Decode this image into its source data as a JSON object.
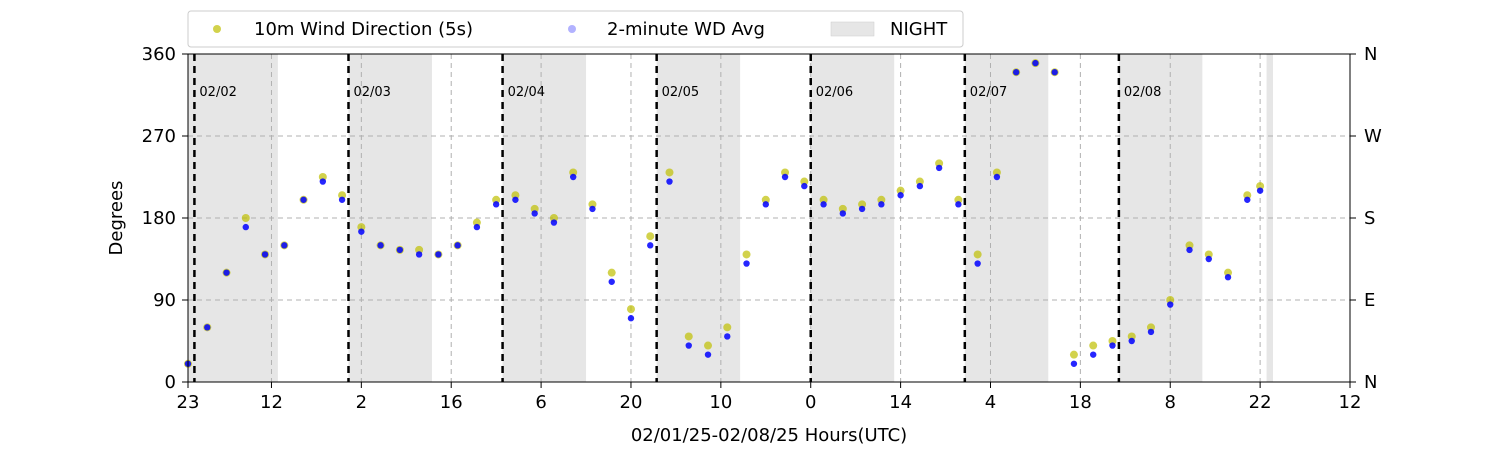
{
  "chart_data": {
    "type": "scatter",
    "xlabel": "02/01/25-02/08/25  Hours(UTC)",
    "ylabel": "Degrees",
    "x_start": "2025-02-01T23:00Z",
    "x_end": "2025-02-09T12:00Z",
    "x_ticks": [
      {
        "time": "2025-02-01T23:00Z",
        "label": "23"
      },
      {
        "time": "2025-02-02T12:00Z",
        "label": "12"
      },
      {
        "time": "2025-02-03T02:00Z",
        "label": "2"
      },
      {
        "time": "2025-02-03T16:00Z",
        "label": "16"
      },
      {
        "time": "2025-02-04T06:00Z",
        "label": "6"
      },
      {
        "time": "2025-02-04T20:00Z",
        "label": "20"
      },
      {
        "time": "2025-02-05T10:00Z",
        "label": "10"
      },
      {
        "time": "2025-02-06T00:00Z",
        "label": "0"
      },
      {
        "time": "2025-02-06T14:00Z",
        "label": "14"
      },
      {
        "time": "2025-02-07T04:00Z",
        "label": "4"
      },
      {
        "time": "2025-02-07T18:00Z",
        "label": "18"
      },
      {
        "time": "2025-02-08T08:00Z",
        "label": "8"
      },
      {
        "time": "2025-02-08T22:00Z",
        "label": "22"
      },
      {
        "time": "2025-02-09T12:00Z",
        "label": "12"
      }
    ],
    "ylim": [
      0,
      360
    ],
    "y_ticks": [
      0,
      90,
      180,
      270,
      360
    ],
    "y2_ticks": [
      {
        "value": 0,
        "label": "N"
      },
      {
        "value": 90,
        "label": "E"
      },
      {
        "value": 180,
        "label": "S"
      },
      {
        "value": 270,
        "label": "W"
      },
      {
        "value": 360,
        "label": "N"
      }
    ],
    "grid": true,
    "legend": {
      "placement": "top-left, above plot",
      "entries": [
        "10m Wind Direction (5s)",
        "2-minute WD Avg",
        "NIGHT"
      ]
    },
    "day_markers": [
      {
        "time": "2025-02-02T00:00Z",
        "label": "02/02"
      },
      {
        "time": "2025-02-03T00:00Z",
        "label": "02/03"
      },
      {
        "time": "2025-02-04T00:00Z",
        "label": "02/04"
      },
      {
        "time": "2025-02-05T00:00Z",
        "label": "02/05"
      },
      {
        "time": "2025-02-06T00:00Z",
        "label": "02/06"
      },
      {
        "time": "2025-02-07T00:00Z",
        "label": "02/07"
      },
      {
        "time": "2025-02-08T00:00Z",
        "label": "02/08"
      }
    ],
    "night": [
      {
        "start": "2025-02-01T23:00Z",
        "end": "2025-02-02T13:00Z"
      },
      {
        "start": "2025-02-03T00:00Z",
        "end": "2025-02-03T13:00Z"
      },
      {
        "start": "2025-02-04T00:00Z",
        "end": "2025-02-04T13:00Z"
      },
      {
        "start": "2025-02-05T00:00Z",
        "end": "2025-02-05T13:00Z"
      },
      {
        "start": "2025-02-06T00:00Z",
        "end": "2025-02-06T13:00Z"
      },
      {
        "start": "2025-02-07T00:00Z",
        "end": "2025-02-07T13:00Z"
      },
      {
        "start": "2025-02-08T00:00Z",
        "end": "2025-02-08T13:00Z"
      },
      {
        "start": "2025-02-08T23:00Z",
        "end": "2025-02-09T00:00Z"
      }
    ],
    "series": [
      {
        "name": "10m Wind Direction (5s)",
        "color": "#bfbf00",
        "x": [
          "2025-02-01T23:00Z",
          "2025-02-02T02:00Z",
          "2025-02-02T05:00Z",
          "2025-02-02T08:00Z",
          "2025-02-02T11:00Z",
          "2025-02-02T14:00Z",
          "2025-02-02T17:00Z",
          "2025-02-02T20:00Z",
          "2025-02-02T23:00Z",
          "2025-02-03T02:00Z",
          "2025-02-03T05:00Z",
          "2025-02-03T08:00Z",
          "2025-02-03T11:00Z",
          "2025-02-03T14:00Z",
          "2025-02-03T17:00Z",
          "2025-02-03T20:00Z",
          "2025-02-03T23:00Z",
          "2025-02-04T02:00Z",
          "2025-02-04T05:00Z",
          "2025-02-04T08:00Z",
          "2025-02-04T11:00Z",
          "2025-02-04T14:00Z",
          "2025-02-04T17:00Z",
          "2025-02-04T20:00Z",
          "2025-02-04T23:00Z",
          "2025-02-05T02:00Z",
          "2025-02-05T05:00Z",
          "2025-02-05T08:00Z",
          "2025-02-05T11:00Z",
          "2025-02-05T14:00Z",
          "2025-02-05T17:00Z",
          "2025-02-05T20:00Z",
          "2025-02-05T23:00Z",
          "2025-02-06T02:00Z",
          "2025-02-06T05:00Z",
          "2025-02-06T08:00Z",
          "2025-02-06T11:00Z",
          "2025-02-06T14:00Z",
          "2025-02-06T17:00Z",
          "2025-02-06T20:00Z",
          "2025-02-06T23:00Z",
          "2025-02-07T02:00Z",
          "2025-02-07T05:00Z",
          "2025-02-07T08:00Z",
          "2025-02-07T11:00Z",
          "2025-02-07T14:00Z",
          "2025-02-07T17:00Z",
          "2025-02-07T20:00Z",
          "2025-02-07T23:00Z",
          "2025-02-08T02:00Z",
          "2025-02-08T05:00Z",
          "2025-02-08T08:00Z",
          "2025-02-08T11:00Z",
          "2025-02-08T14:00Z",
          "2025-02-08T17:00Z",
          "2025-02-08T20:00Z",
          "2025-02-08T22:00Z"
        ],
        "y": [
          20,
          60,
          120,
          180,
          140,
          150,
          200,
          225,
          205,
          170,
          150,
          145,
          145,
          140,
          150,
          175,
          200,
          205,
          190,
          180,
          230,
          195,
          120,
          80,
          160,
          230,
          50,
          40,
          60,
          140,
          200,
          230,
          220,
          200,
          190,
          195,
          200,
          210,
          220,
          240,
          200,
          140,
          230,
          340,
          350,
          340,
          30,
          40,
          45,
          50,
          60,
          90,
          150,
          140,
          120,
          205,
          215
        ]
      },
      {
        "name": "2-minute WD Avg",
        "color": "#0000ff",
        "x": [
          "2025-02-01T23:00Z",
          "2025-02-02T02:00Z",
          "2025-02-02T05:00Z",
          "2025-02-02T08:00Z",
          "2025-02-02T11:00Z",
          "2025-02-02T14:00Z",
          "2025-02-02T17:00Z",
          "2025-02-02T20:00Z",
          "2025-02-02T23:00Z",
          "2025-02-03T02:00Z",
          "2025-02-03T05:00Z",
          "2025-02-03T08:00Z",
          "2025-02-03T11:00Z",
          "2025-02-03T14:00Z",
          "2025-02-03T17:00Z",
          "2025-02-03T20:00Z",
          "2025-02-03T23:00Z",
          "2025-02-04T02:00Z",
          "2025-02-04T05:00Z",
          "2025-02-04T08:00Z",
          "2025-02-04T11:00Z",
          "2025-02-04T14:00Z",
          "2025-02-04T17:00Z",
          "2025-02-04T20:00Z",
          "2025-02-04T23:00Z",
          "2025-02-05T02:00Z",
          "2025-02-05T05:00Z",
          "2025-02-05T08:00Z",
          "2025-02-05T11:00Z",
          "2025-02-05T14:00Z",
          "2025-02-05T17:00Z",
          "2025-02-05T20:00Z",
          "2025-02-05T23:00Z",
          "2025-02-06T02:00Z",
          "2025-02-06T05:00Z",
          "2025-02-06T08:00Z",
          "2025-02-06T11:00Z",
          "2025-02-06T14:00Z",
          "2025-02-06T17:00Z",
          "2025-02-06T20:00Z",
          "2025-02-06T23:00Z",
          "2025-02-07T02:00Z",
          "2025-02-07T05:00Z",
          "2025-02-07T08:00Z",
          "2025-02-07T11:00Z",
          "2025-02-07T14:00Z",
          "2025-02-07T17:00Z",
          "2025-02-07T20:00Z",
          "2025-02-07T23:00Z",
          "2025-02-08T02:00Z",
          "2025-02-08T05:00Z",
          "2025-02-08T08:00Z",
          "2025-02-08T11:00Z",
          "2025-02-08T14:00Z",
          "2025-02-08T17:00Z",
          "2025-02-08T20:00Z",
          "2025-02-08T22:00Z"
        ],
        "y": [
          20,
          60,
          120,
          170,
          140,
          150,
          200,
          220,
          200,
          165,
          150,
          145,
          140,
          140,
          150,
          170,
          195,
          200,
          185,
          175,
          225,
          190,
          110,
          70,
          150,
          220,
          40,
          30,
          50,
          130,
          195,
          225,
          215,
          195,
          185,
          190,
          195,
          205,
          215,
          235,
          195,
          130,
          225,
          340,
          350,
          340,
          20,
          30,
          40,
          45,
          55,
          85,
          145,
          135,
          115,
          200,
          210
        ]
      }
    ]
  }
}
